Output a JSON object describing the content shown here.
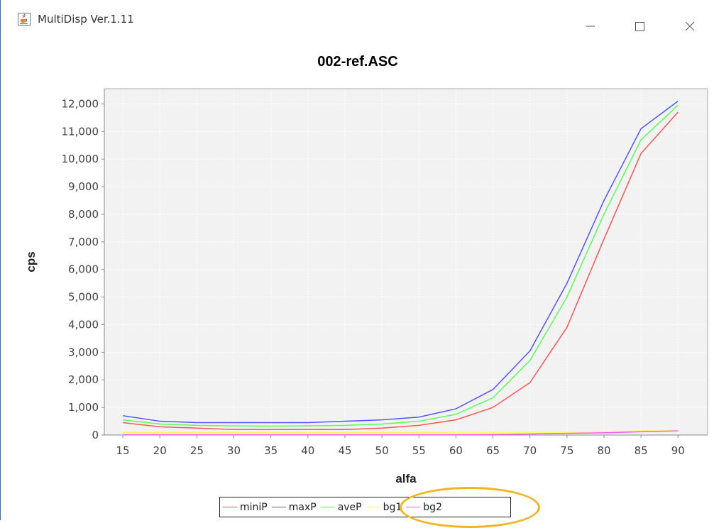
{
  "window": {
    "title": "MultiDisp Ver.1.11",
    "icon": "java-cup-icon",
    "controls": [
      "minimize-icon",
      "maximize-icon",
      "close-icon"
    ]
  },
  "chart_data": {
    "type": "line",
    "title": "002-ref.ASC",
    "xlabel": "alfa",
    "ylabel": "cps",
    "x": [
      15,
      20,
      25,
      30,
      35,
      40,
      45,
      50,
      55,
      60,
      65,
      70,
      75,
      80,
      85,
      90
    ],
    "xticks": [
      "15",
      "20",
      "25",
      "30",
      "35",
      "40",
      "45",
      "50",
      "55",
      "60",
      "65",
      "70",
      "75",
      "80",
      "85",
      "90"
    ],
    "ylim": [
      0,
      12000
    ],
    "yticks": [
      "0",
      "1,000",
      "2,000",
      "3,000",
      "4,000",
      "5,000",
      "6,000",
      "7,000",
      "8,000",
      "9,000",
      "10,000",
      "11,000",
      "12,000"
    ],
    "grid": true,
    "legend_position": "bottom",
    "series": [
      {
        "name": "miniP",
        "color": "#ff5555",
        "values": [
          450,
          300,
          250,
          200,
          200,
          200,
          200,
          250,
          350,
          550,
          1000,
          1900,
          3900,
          7100,
          10200,
          11700
        ]
      },
      {
        "name": "maxP",
        "color": "#5555ff",
        "values": [
          700,
          500,
          450,
          450,
          450,
          450,
          500,
          550,
          650,
          950,
          1650,
          3050,
          5500,
          8500,
          11100,
          12100
        ]
      },
      {
        "name": "aveP",
        "color": "#55ff55",
        "values": [
          550,
          400,
          350,
          330,
          320,
          330,
          350,
          400,
          500,
          750,
          1350,
          2700,
          5000,
          8000,
          10700,
          11950
        ]
      },
      {
        "name": "bg1",
        "color": "#ffff55",
        "values": [
          100,
          100,
          100,
          100,
          100,
          100,
          100,
          100,
          100,
          100,
          100,
          100,
          100,
          120,
          150,
          160
        ]
      },
      {
        "name": "bg2",
        "color": "#ff55ff",
        "values": [
          10,
          10,
          10,
          10,
          10,
          10,
          10,
          10,
          10,
          10,
          20,
          40,
          60,
          80,
          120,
          150
        ]
      }
    ]
  }
}
